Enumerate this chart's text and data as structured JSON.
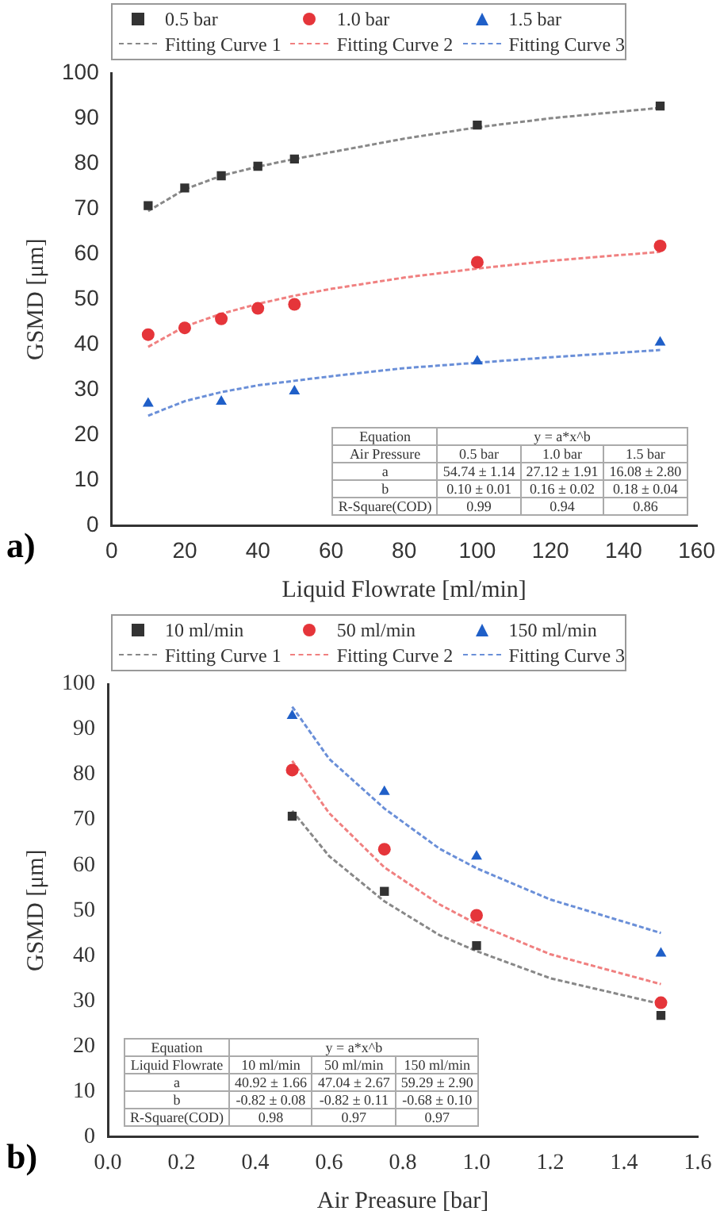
{
  "chart_data": [
    {
      "type": "scatter",
      "xlabel": "Liquid Flowrate [ml/min]",
      "ylabel": "GSMD [μm]",
      "xlim": [
        0,
        160
      ],
      "xticks": [
        0,
        20,
        40,
        60,
        80,
        100,
        120,
        140,
        160
      ],
      "ylim": [
        0,
        100
      ],
      "yticks": [
        0,
        10,
        20,
        30,
        40,
        50,
        60,
        70,
        80,
        90,
        100
      ],
      "legend": "top",
      "grid": false,
      "series": [
        {
          "name": "0.5 bar",
          "color": "#333333",
          "marker": "square",
          "x": [
            10,
            20,
            30,
            40,
            50,
            100,
            150
          ],
          "values": [
            70.7,
            74.6,
            77.3,
            79.4,
            81.0,
            88.5,
            92.7
          ]
        },
        {
          "name": "1.0 bar",
          "color": "#e5353a",
          "marker": "circle",
          "x": [
            10,
            20,
            30,
            40,
            50,
            100,
            150
          ],
          "values": [
            42.2,
            43.7,
            45.7,
            48.0,
            48.9,
            58.2,
            61.8
          ]
        },
        {
          "name": "1.5 bar",
          "color": "#1f5fc8",
          "marker": "triangle",
          "x": [
            10,
            30,
            50,
            100,
            150
          ],
          "values": [
            27.0,
            27.4,
            29.7,
            36.3,
            40.5
          ]
        },
        {
          "name": "Fitting Curve 1",
          "type": "line",
          "color": "#888888",
          "marker": "none",
          "line_style": "dashed",
          "x": [
            10,
            20,
            30,
            40,
            50,
            60,
            80,
            100,
            120,
            150
          ],
          "values": [
            69.5,
            74.3,
            77.3,
            79.3,
            81.0,
            82.5,
            85.5,
            88.0,
            90.0,
            92.3
          ]
        },
        {
          "name": "Fitting Curve 2",
          "type": "line",
          "color": "#f08080",
          "marker": "none",
          "line_style": "dashed",
          "x": [
            10,
            20,
            30,
            40,
            50,
            60,
            80,
            100,
            120,
            150
          ],
          "values": [
            39.5,
            44.0,
            46.8,
            49.0,
            50.8,
            52.3,
            54.8,
            56.8,
            58.5,
            60.5
          ]
        },
        {
          "name": "Fitting Curve 3",
          "type": "line",
          "color": "#6a8fd8",
          "marker": "none",
          "line_style": "dashed",
          "x": [
            10,
            20,
            30,
            40,
            50,
            60,
            80,
            100,
            120,
            150
          ],
          "values": [
            24.3,
            27.5,
            29.5,
            31.0,
            32.0,
            33.0,
            34.8,
            36.0,
            37.2,
            38.8
          ]
        }
      ],
      "annotations": [
        "a)",
        "Equation",
        "y = a*x^b",
        "Air Pressure",
        "0.5 bar",
        "1.0 bar",
        "1.5 bar",
        "a",
        "54.74 ± 1.14",
        "27.12 ± 1.91",
        "16.08 ± 2.80",
        "b",
        "0.10 ± 0.01",
        "0.16 ± 0.02",
        "0.18 ± 0.04",
        "R-Square(COD)",
        "0.99",
        "0.94",
        "0.86"
      ]
    },
    {
      "type": "scatter",
      "xlabel": "Air Preasure [bar]",
      "ylabel": "GSMD [μm]",
      "xlim": [
        0,
        1.6
      ],
      "xticks": [
        {
          "value": 0,
          "label": "0.0"
        },
        0.2,
        0.4,
        0.6,
        0.8,
        {
          "value": 1,
          "label": "1.0"
        },
        1.2,
        1.4,
        1.6
      ],
      "ylim": [
        0,
        100
      ],
      "yticks": [
        0,
        10,
        20,
        30,
        40,
        50,
        60,
        70,
        80,
        90,
        100
      ],
      "legend": "top",
      "grid": false,
      "series": [
        {
          "name": "10 ml/min",
          "color": "#333333",
          "marker": "square",
          "x": [
            0.5,
            0.75,
            1.0,
            1.5
          ],
          "values": [
            70.8,
            54.2,
            42.2,
            26.8
          ]
        },
        {
          "name": "50 ml/min",
          "color": "#e5353a",
          "marker": "circle",
          "x": [
            0.5,
            0.75,
            1.0,
            1.5
          ],
          "values": [
            81.0,
            63.5,
            48.9,
            29.6
          ]
        },
        {
          "name": "150 ml/min",
          "color": "#1f5fc8",
          "marker": "triangle",
          "x": [
            0.5,
            0.75,
            1.0,
            1.5
          ],
          "values": [
            93.0,
            76.2,
            61.9,
            40.5
          ]
        },
        {
          "name": "Fitting Curve 1",
          "type": "line",
          "color": "#888888",
          "marker": "none",
          "line_style": "dashed",
          "x": [
            0.5,
            0.6,
            0.75,
            0.9,
            1.0,
            1.2,
            1.5
          ],
          "values": [
            72.0,
            62.0,
            52.0,
            44.5,
            41.0,
            35.0,
            29.3
          ]
        },
        {
          "name": "Fitting Curve 2",
          "type": "line",
          "color": "#f08080",
          "marker": "none",
          "line_style": "dashed",
          "x": [
            0.5,
            0.6,
            0.75,
            0.9,
            1.0,
            1.2,
            1.5
          ],
          "values": [
            83.0,
            71.5,
            59.5,
            51.3,
            47.0,
            40.3,
            33.7
          ]
        },
        {
          "name": "Fitting Curve 3",
          "type": "line",
          "color": "#6a8fd8",
          "marker": "none",
          "line_style": "dashed",
          "x": [
            0.5,
            0.6,
            0.75,
            0.9,
            1.0,
            1.2,
            1.5
          ],
          "values": [
            95.0,
            83.5,
            72.5,
            63.6,
            59.3,
            52.4,
            45.0
          ]
        }
      ],
      "annotations": [
        "b)",
        "Equation",
        "y = a*x^b",
        "Liquid Flowrate",
        "10 ml/min",
        "50 ml/min",
        "150 ml/min",
        "a",
        "40.92 ± 1.66",
        "47.04 ± 2.67",
        "59.29 ± 2.90",
        "b",
        "-0.82 ± 0.08",
        "-0.82 ± 0.11",
        "-0.68 ± 0.10",
        "R-Square(COD)",
        "0.98",
        "0.97",
        "0.97"
      ]
    }
  ]
}
